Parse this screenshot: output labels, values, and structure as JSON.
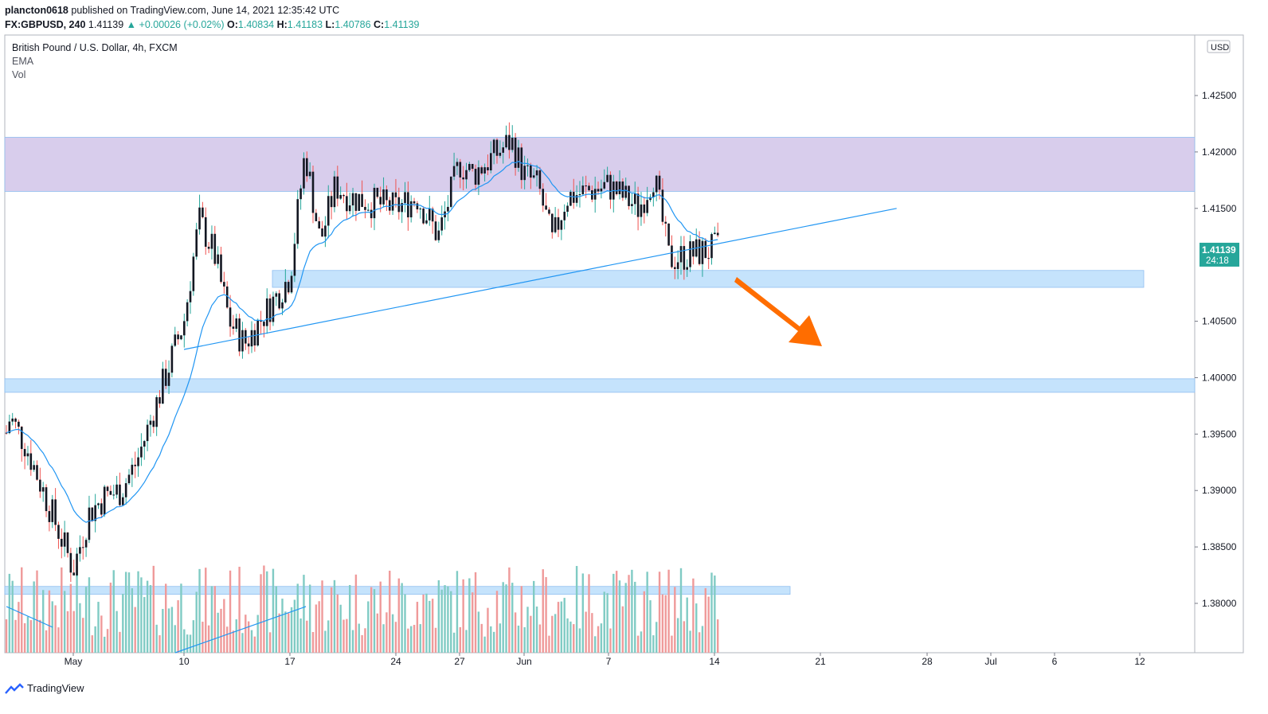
{
  "header": {
    "author": "plancton0618",
    "published_text": "published on TradingView.com, June 14, 2021 12:35:42 UTC",
    "symbol": "FX:GBPUSD, 240",
    "last": "1.41139",
    "change": "+0.00026 (+0.02%)",
    "open_label": "O:",
    "open": "1.40834",
    "high_label": "H:",
    "high": "1.41183",
    "low_label": "L:",
    "low": "1.40786",
    "close_label": "C:",
    "close": "1.41139"
  },
  "legend": {
    "title": "British Pound / U.S. Dollar, 4h, FXCM",
    "indicator1": "EMA",
    "indicator2": "Vol"
  },
  "price_axis": {
    "currency": "USD",
    "last_price": "1.41139",
    "countdown": "24:18"
  },
  "footer": {
    "brand": "TradingView"
  },
  "colors": {
    "up": "#26a69a",
    "down": "#ef5350",
    "candle_body": "#131722",
    "ema": "#2196f3",
    "resistance_zone": "#d1c4e9",
    "support_zone": "#bbdefb",
    "arrow": "#ff6d00",
    "vol_up": "#80cbc4",
    "vol_down": "#ef9a9a"
  },
  "chart_data": {
    "type": "candlestick",
    "title": "British Pound / U.S. Dollar, 4h, FXCM",
    "ylim": [
      1.376,
      1.431
    ],
    "y_ticks": [
      "1.42500",
      "1.42000",
      "1.41500",
      "1.40500",
      "1.40000",
      "1.39500",
      "1.39000",
      "1.38500",
      "1.38000"
    ],
    "x_ticks": [
      "May",
      "10",
      "17",
      "24",
      "27",
      "Jun",
      "7",
      "14",
      "21",
      "28",
      "Jul",
      "6",
      "12"
    ],
    "x_tick_dates": [
      "2021-05-03",
      "2021-05-10",
      "2021-05-17",
      "2021-05-24",
      "2021-05-27",
      "2021-06-01",
      "2021-06-07",
      "2021-06-14",
      "2021-06-21",
      "2021-06-28",
      "2021-07-01",
      "2021-07-06",
      "2021-07-12"
    ],
    "candles": [
      {
        "date": "2021-04-28",
        "close": 1.3905
      },
      {
        "date": "2021-04-29",
        "close": 1.3965
      },
      {
        "date": "2021-04-30",
        "close": 1.394
      },
      {
        "date": "2021-05-03",
        "close": 1.383
      },
      {
        "date": "2021-05-04",
        "close": 1.388
      },
      {
        "date": "2021-05-05",
        "close": 1.3895
      },
      {
        "date": "2021-05-06",
        "close": 1.39
      },
      {
        "date": "2021-05-07",
        "close": 1.3925
      },
      {
        "date": "2021-05-10",
        "close": 1.405
      },
      {
        "date": "2021-05-11",
        "close": 1.414
      },
      {
        "date": "2021-05-12",
        "close": 1.411
      },
      {
        "date": "2021-05-13",
        "close": 1.405
      },
      {
        "date": "2021-05-14",
        "close": 1.403
      },
      {
        "date": "2021-05-17",
        "close": 1.409
      },
      {
        "date": "2021-05-18",
        "close": 1.42
      },
      {
        "date": "2021-05-19",
        "close": 1.412
      },
      {
        "date": "2021-05-20",
        "close": 1.417
      },
      {
        "date": "2021-05-21",
        "close": 1.416
      },
      {
        "date": "2021-05-24",
        "close": 1.415
      },
      {
        "date": "2021-05-25",
        "close": 1.416
      },
      {
        "date": "2021-05-26",
        "close": 1.4125
      },
      {
        "date": "2021-05-27",
        "close": 1.419
      },
      {
        "date": "2021-05-28",
        "close": 1.418
      },
      {
        "date": "2021-05-31",
        "close": 1.421
      },
      {
        "date": "2021-06-01",
        "close": 1.418
      },
      {
        "date": "2021-06-02",
        "close": 1.417
      },
      {
        "date": "2021-06-03",
        "close": 1.412
      },
      {
        "date": "2021-06-04",
        "close": 1.416
      },
      {
        "date": "2021-06-07",
        "close": 1.417
      },
      {
        "date": "2021-06-08",
        "close": 1.416
      },
      {
        "date": "2021-06-09",
        "close": 1.415
      },
      {
        "date": "2021-06-10",
        "close": 1.418
      },
      {
        "date": "2021-06-11",
        "close": 1.4105
      },
      {
        "date": "2021-06-14",
        "close": 1.41139
      }
    ],
    "annotations": {
      "resistance_zone": [
        1.4165,
        1.4213
      ],
      "support_zone_1": [
        1.408,
        1.4095
      ],
      "support_zone_2": [
        1.3987,
        1.3999
      ],
      "volume_zone": [
        1.3808,
        1.3815
      ],
      "trendline": {
        "from": [
          "2021-05-10",
          1.4025
        ],
        "to": [
          "2021-06-26",
          1.415
        ]
      },
      "arrow": "down"
    }
  }
}
